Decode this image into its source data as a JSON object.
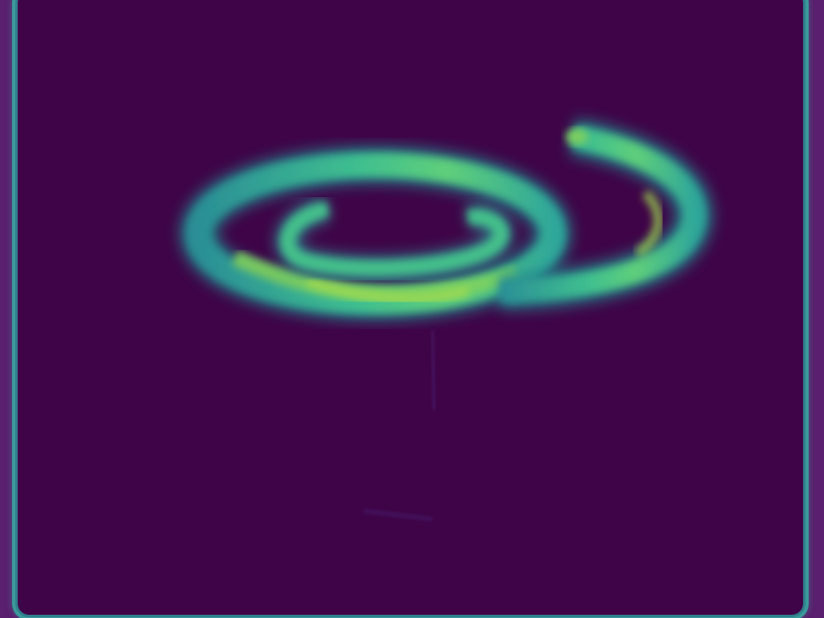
{
  "colors": {
    "page_background": "#5a1f6e",
    "panel_background": "#3f0447",
    "panel_border": "#3b9a9a",
    "glow_dark": "#2a7a8c",
    "glow_mid": "#2fb39a",
    "glow_bright": "#8fd65a"
  },
  "icons": {
    "marker": "crosshair-icon"
  }
}
